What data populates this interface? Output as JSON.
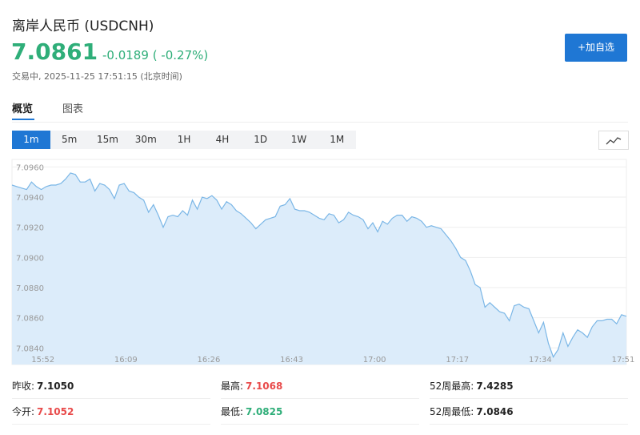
{
  "header": {
    "title": "离岸人民币",
    "code": "(USDCNH)",
    "price": "7.0861",
    "change": "-0.0189",
    "change_pct": "( -0.27%)",
    "status": "交易中,",
    "time": "2025-11-25 17:51:15",
    "timezone": "(北京时间)",
    "button": "+加自选"
  },
  "tabs": [
    "概览",
    "图表"
  ],
  "intervals": [
    "1m",
    "5m",
    "15m",
    "30m",
    "1H",
    "4H",
    "1D",
    "1W",
    "1M"
  ],
  "stats": [
    {
      "label": "昨收:",
      "value": "7.1050",
      "color": "#222222"
    },
    {
      "label": "最高:",
      "value": "7.1068",
      "color": "#e84a4a"
    },
    {
      "label": "52周最高:",
      "value": "7.4285",
      "color": "#222222"
    },
    {
      "label": "今开:",
      "value": "7.1052",
      "color": "#e84a4a"
    },
    {
      "label": "最低:",
      "value": "7.0825",
      "color": "#2fae79"
    },
    {
      "label": "52周最低:",
      "value": "7.0846",
      "color": "#222222"
    }
  ],
  "chart_data": {
    "type": "area",
    "color": "#7ab6e6",
    "fill": "#dcecfa",
    "grid": true,
    "categories": [
      null,
      null,
      null,
      null,
      null,
      null,
      null,
      "15:52",
      null,
      null,
      null,
      null,
      null,
      null,
      null,
      null,
      null,
      null,
      null,
      null,
      null,
      null,
      null,
      null,
      "16:09",
      null,
      null,
      null,
      null,
      null,
      null,
      null,
      null,
      null,
      null,
      null,
      null,
      null,
      null,
      null,
      null,
      "16:26",
      null,
      null,
      null,
      null,
      null,
      null,
      null,
      null,
      null,
      null,
      null,
      null,
      null,
      null,
      null,
      null,
      "16:43",
      null,
      null,
      null,
      null,
      null,
      null,
      null,
      null,
      null,
      null,
      null,
      null,
      null,
      null,
      null,
      null,
      "17:00",
      null,
      null,
      null,
      null,
      null,
      null,
      null,
      null,
      null,
      null,
      null,
      null,
      null,
      null,
      null,
      null,
      "17:17",
      null,
      null,
      null,
      null,
      null,
      null,
      null,
      null,
      null,
      null,
      null,
      null,
      null,
      null,
      null,
      null,
      "17:34",
      null,
      null,
      null,
      null,
      null,
      null,
      null,
      null,
      null,
      null,
      null,
      null,
      null,
      null,
      null,
      null,
      "17:51"
    ],
    "values": [
      7.0948,
      7.0947,
      7.0946,
      7.0945,
      7.095,
      7.0947,
      7.0945,
      7.0947,
      7.0948,
      7.0948,
      7.0949,
      7.0952,
      7.0956,
      7.0955,
      7.095,
      7.095,
      7.0952,
      7.0944,
      7.0949,
      7.0948,
      7.0945,
      7.0939,
      7.0948,
      7.0949,
      7.0944,
      7.0943,
      7.094,
      7.0938,
      7.093,
      7.0935,
      7.0928,
      7.092,
      7.0927,
      7.0928,
      7.0927,
      7.0931,
      7.0928,
      7.0938,
      7.0932,
      7.094,
      7.0939,
      7.0941,
      7.0938,
      7.0932,
      7.0937,
      7.0935,
      7.0931,
      7.0929,
      7.0926,
      7.0923,
      7.0919,
      7.0922,
      7.0925,
      7.0926,
      7.0927,
      7.0934,
      7.0935,
      7.0939,
      7.0932,
      7.0931,
      7.0931,
      7.093,
      7.0928,
      7.0926,
      7.0925,
      7.0929,
      7.0928,
      7.0923,
      7.0925,
      7.093,
      7.0928,
      7.0927,
      7.0925,
      7.0919,
      7.0923,
      7.0917,
      7.0924,
      7.0922,
      7.0926,
      7.0928,
      7.0928,
      7.0924,
      7.0927,
      7.0926,
      7.0924,
      7.092,
      7.0921,
      7.092,
      7.0919,
      7.0915,
      7.0911,
      7.0906,
      7.09,
      7.0898,
      7.0891,
      7.0882,
      7.088,
      7.0867,
      7.087,
      7.0867,
      7.0864,
      7.0863,
      7.0858,
      7.0868,
      7.0869,
      7.0867,
      7.0866,
      7.0858,
      7.085,
      7.0857,
      7.0843,
      7.0834,
      7.0839,
      7.085,
      7.0841,
      7.0847,
      7.0852,
      7.085,
      7.0847,
      7.0854,
      7.0858,
      7.0858,
      7.0859,
      7.0859,
      7.0856,
      7.0862,
      7.0861
    ],
    "ylim": [
      7.0829,
      7.0965
    ],
    "yticks": [
      {
        "value": 7.096,
        "label": "7.0960"
      },
      {
        "value": 7.094,
        "label": "7.0940"
      },
      {
        "value": 7.092,
        "label": "7.0920"
      },
      {
        "value": 7.09,
        "label": "7.0900"
      },
      {
        "value": 7.088,
        "label": "7.0880"
      },
      {
        "value": 7.086,
        "label": "7.0860"
      },
      {
        "value": 7.084,
        "label": "7.0840"
      }
    ]
  }
}
